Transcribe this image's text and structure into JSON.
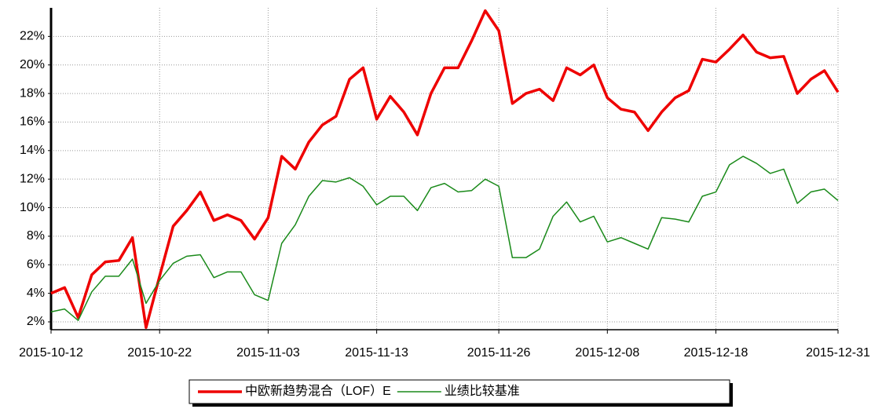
{
  "chart_data": {
    "type": "line",
    "categories": [
      "2015-10-12",
      null,
      null,
      null,
      null,
      null,
      null,
      null,
      "2015-10-22",
      null,
      null,
      null,
      null,
      null,
      null,
      null,
      "2015-11-03",
      null,
      null,
      null,
      null,
      null,
      null,
      null,
      "2015-11-13",
      null,
      null,
      null,
      null,
      null,
      null,
      null,
      null,
      "2015-11-26",
      null,
      null,
      null,
      null,
      null,
      null,
      null,
      "2015-12-08",
      null,
      null,
      null,
      null,
      null,
      null,
      null,
      "2015-12-18",
      null,
      null,
      null,
      null,
      null,
      null,
      null,
      null,
      "2015-12-31"
    ],
    "series": [
      {
        "name": "中欧新趋势混合（LOF）E",
        "color": "#ee0000",
        "values": [
          4.0,
          4.4,
          2.3,
          5.3,
          6.2,
          6.3,
          7.9,
          1.6,
          5.2,
          8.7,
          9.8,
          11.1,
          9.1,
          9.5,
          9.1,
          7.8,
          9.3,
          13.6,
          12.7,
          14.6,
          15.8,
          16.4,
          19.0,
          19.8,
          16.2,
          17.8,
          16.7,
          15.1,
          18.0,
          19.8,
          19.8,
          21.7,
          23.8,
          22.4,
          17.3,
          18.0,
          18.3,
          17.5,
          19.8,
          19.3,
          20.0,
          17.7,
          16.9,
          16.7,
          15.4,
          16.7,
          17.7,
          18.2,
          20.4,
          20.2,
          21.1,
          22.1,
          20.9,
          20.5,
          20.6,
          18.0,
          19.0,
          19.6,
          18.1
        ]
      },
      {
        "name": "业绩比较基准",
        "color": "#1a8a1a",
        "values": [
          2.7,
          2.9,
          2.1,
          4.1,
          5.2,
          5.2,
          6.4,
          3.3,
          4.9,
          6.1,
          6.6,
          6.7,
          5.1,
          5.5,
          5.5,
          3.9,
          3.5,
          7.5,
          8.8,
          10.8,
          11.9,
          11.8,
          12.1,
          11.5,
          10.2,
          10.8,
          10.8,
          9.8,
          11.4,
          11.7,
          11.1,
          11.2,
          12.0,
          11.5,
          6.5,
          6.5,
          7.1,
          9.4,
          10.4,
          9.0,
          9.4,
          7.6,
          7.9,
          7.5,
          7.1,
          9.3,
          9.2,
          9.0,
          10.8,
          11.1,
          13.0,
          13.6,
          13.1,
          12.4,
          12.7,
          10.3,
          11.1,
          11.3,
          10.5
        ]
      }
    ],
    "ylim": [
      1.45,
      24
    ],
    "yticks": [
      {
        "value": 2,
        "label": "2%"
      },
      {
        "value": 4,
        "label": "4%"
      },
      {
        "value": 6,
        "label": "6%"
      },
      {
        "value": 8,
        "label": "8%"
      },
      {
        "value": 10,
        "label": "10%"
      },
      {
        "value": 12,
        "label": "12%"
      },
      {
        "value": 14,
        "label": "14%"
      },
      {
        "value": 16,
        "label": "16%"
      },
      {
        "value": 18,
        "label": "18%"
      },
      {
        "value": 20,
        "label": "20%"
      },
      {
        "value": 22,
        "label": "22%"
      }
    ],
    "grid": true,
    "legend": "bottom"
  }
}
